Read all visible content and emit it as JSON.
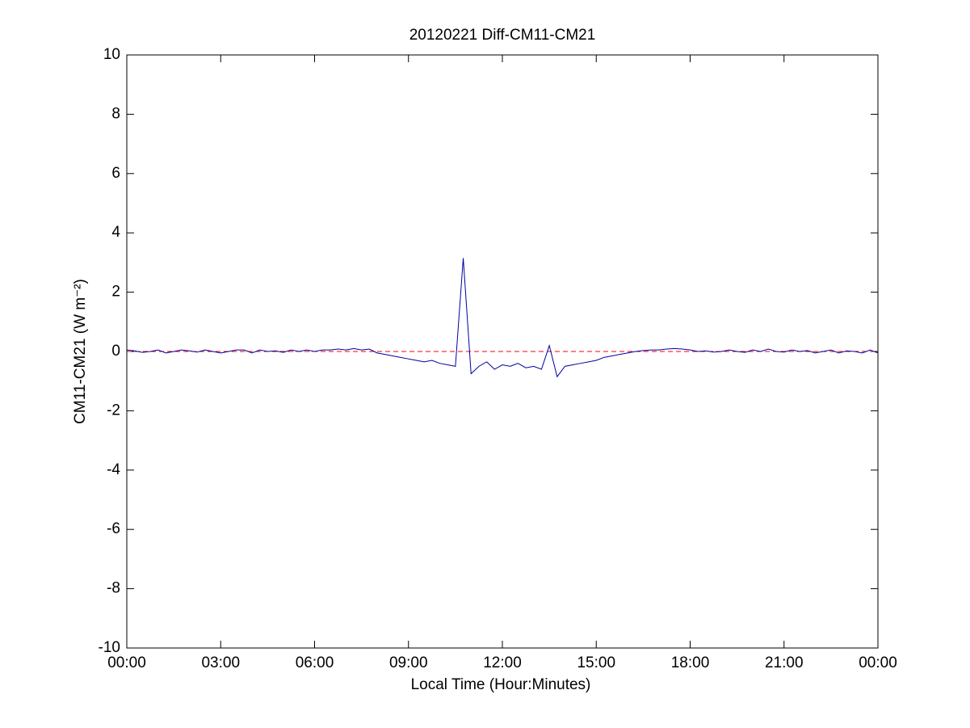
{
  "chart_data": {
    "type": "line",
    "title": "20120221 Diff-CM11-CM21",
    "xlabel": "Local Time (Hour:Minutes)",
    "ylabel": "CM11-CM21 (W m⁻²)",
    "x": [
      0,
      0.25,
      0.5,
      0.75,
      1,
      1.25,
      1.5,
      1.75,
      2,
      2.25,
      2.5,
      2.75,
      3,
      3.25,
      3.5,
      3.75,
      4,
      4.25,
      4.5,
      4.75,
      5,
      5.25,
      5.5,
      5.75,
      6,
      6.25,
      6.5,
      6.75,
      7,
      7.25,
      7.5,
      7.75,
      8,
      8.25,
      8.5,
      8.75,
      9,
      9.25,
      9.5,
      9.75,
      10,
      10.25,
      10.5,
      10.75,
      11,
      11.25,
      11.5,
      11.75,
      12,
      12.25,
      12.5,
      12.75,
      13,
      13.25,
      13.5,
      13.75,
      14,
      14.25,
      14.5,
      14.75,
      15,
      15.25,
      15.5,
      15.75,
      16,
      16.25,
      16.5,
      16.75,
      17,
      17.25,
      17.5,
      17.75,
      18,
      18.25,
      18.5,
      18.75,
      19,
      19.25,
      19.5,
      19.75,
      20,
      20.25,
      20.5,
      20.75,
      21,
      21.25,
      21.5,
      21.75,
      22,
      22.25,
      22.5,
      22.75,
      23,
      23.25,
      23.5,
      23.75,
      24
    ],
    "series": [
      {
        "name": "Diff-CM11-CM21",
        "color": "#0000a0",
        "values": [
          0.05,
          0.02,
          -0.03,
          0,
          0.05,
          -0.05,
          0,
          0.05,
          0.02,
          -0.02,
          0.05,
          0,
          -0.05,
          0,
          0.05,
          0.05,
          -0.05,
          0.05,
          0,
          0.02,
          -0.03,
          0.05,
          0,
          0.05,
          0,
          0.05,
          0.05,
          0.08,
          0.05,
          0.1,
          0.05,
          0.08,
          -0.05,
          -0.1,
          -0.15,
          -0.2,
          -0.25,
          -0.3,
          -0.35,
          -0.3,
          -0.4,
          -0.45,
          -0.5,
          3.15,
          -0.75,
          -0.5,
          -0.35,
          -0.6,
          -0.45,
          -0.5,
          -0.4,
          -0.55,
          -0.5,
          -0.6,
          0.2,
          -0.85,
          -0.5,
          -0.45,
          -0.4,
          -0.35,
          -0.3,
          -0.2,
          -0.15,
          -0.1,
          -0.05,
          0,
          0.03,
          0.05,
          0.05,
          0.08,
          0.1,
          0.08,
          0.05,
          0,
          0.02,
          -0.02,
          0,
          0.05,
          0,
          -0.03,
          0.05,
          0,
          0.08,
          0,
          -0.02,
          0.05,
          0,
          0.03,
          -0.05,
          0,
          0.05,
          -0.05,
          0.02,
          0,
          -0.05,
          0.05,
          -0.05
        ]
      }
    ],
    "reference_line": {
      "value": 0,
      "color": "#ff0000"
    },
    "xlim": [
      0,
      24
    ],
    "xticks": [
      {
        "value": 0,
        "label": "00:00"
      },
      {
        "value": 3,
        "label": "03:00"
      },
      {
        "value": 6,
        "label": "06:00"
      },
      {
        "value": 9,
        "label": "09:00"
      },
      {
        "value": 12,
        "label": "12:00"
      },
      {
        "value": 15,
        "label": "15:00"
      },
      {
        "value": 18,
        "label": "18:00"
      },
      {
        "value": 21,
        "label": "21:00"
      },
      {
        "value": 24,
        "label": "00:00"
      }
    ],
    "ylim": [
      -10,
      10
    ],
    "yticks": [
      -10,
      -8,
      -6,
      -4,
      -2,
      0,
      2,
      4,
      6,
      8,
      10
    ],
    "grid": false
  }
}
